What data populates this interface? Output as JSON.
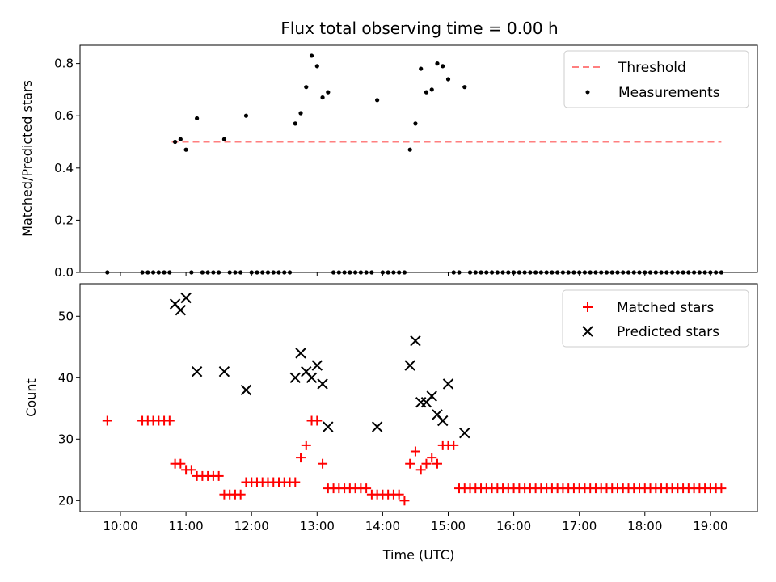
{
  "figure": {
    "title": "Flux total observing time = 0.00 h",
    "xlabel": "Time (UTC)"
  },
  "chart_data": [
    {
      "type": "scatter",
      "ylabel": "Matched/Predicted stars",
      "ylim": [
        0,
        0.87
      ],
      "xlim": [
        "09:23",
        "19:43"
      ],
      "yticks": [
        0.0,
        0.2,
        0.4,
        0.6,
        0.8
      ],
      "ytick_labels": [
        "0.0",
        "0.2",
        "0.4",
        "0.6",
        "0.8"
      ],
      "legend_position": "top-right",
      "threshold": {
        "name": "Threshold",
        "value": 0.5,
        "x_range": [
          "10:47",
          "19:10"
        ],
        "color": "#ff7f7f",
        "style": "dashed"
      },
      "series": [
        {
          "name": "Measurements",
          "color": "#000000",
          "marker": "dot",
          "points": [
            [
              "09:48",
              0.0
            ],
            [
              "10:20",
              0.0
            ],
            [
              "10:25",
              0.0
            ],
            [
              "10:30",
              0.0
            ],
            [
              "10:35",
              0.0
            ],
            [
              "10:40",
              0.0
            ],
            [
              "10:45",
              0.0
            ],
            [
              "10:50",
              0.5
            ],
            [
              "10:55",
              0.51
            ],
            [
              "11:00",
              0.47
            ],
            [
              "11:05",
              0.0
            ],
            [
              "11:10",
              0.59
            ],
            [
              "11:15",
              0.0
            ],
            [
              "11:20",
              0.0
            ],
            [
              "11:25",
              0.0
            ],
            [
              "11:30",
              0.0
            ],
            [
              "11:35",
              0.51
            ],
            [
              "11:40",
              0.0
            ],
            [
              "11:45",
              0.0
            ],
            [
              "11:50",
              0.0
            ],
            [
              "11:55",
              0.6
            ],
            [
              "12:00",
              0.0
            ],
            [
              "12:05",
              0.0
            ],
            [
              "12:10",
              0.0
            ],
            [
              "12:15",
              0.0
            ],
            [
              "12:20",
              0.0
            ],
            [
              "12:25",
              0.0
            ],
            [
              "12:30",
              0.0
            ],
            [
              "12:35",
              0.0
            ],
            [
              "12:40",
              0.57
            ],
            [
              "12:45",
              0.61
            ],
            [
              "12:50",
              0.71
            ],
            [
              "12:55",
              0.83
            ],
            [
              "13:00",
              0.79
            ],
            [
              "13:05",
              0.67
            ],
            [
              "13:10",
              0.69
            ],
            [
              "13:15",
              0.0
            ],
            [
              "13:20",
              0.0
            ],
            [
              "13:25",
              0.0
            ],
            [
              "13:30",
              0.0
            ],
            [
              "13:35",
              0.0
            ],
            [
              "13:40",
              0.0
            ],
            [
              "13:45",
              0.0
            ],
            [
              "13:50",
              0.0
            ],
            [
              "13:55",
              0.66
            ],
            [
              "14:00",
              0.0
            ],
            [
              "14:05",
              0.0
            ],
            [
              "14:10",
              0.0
            ],
            [
              "14:15",
              0.0
            ],
            [
              "14:20",
              0.0
            ],
            [
              "14:25",
              0.47
            ],
            [
              "14:30",
              0.57
            ],
            [
              "14:35",
              0.78
            ],
            [
              "14:40",
              0.69
            ],
            [
              "14:45",
              0.7
            ],
            [
              "14:50",
              0.8
            ],
            [
              "14:55",
              0.79
            ],
            [
              "15:00",
              0.74
            ],
            [
              "15:05",
              0.0
            ],
            [
              "15:10",
              0.0
            ],
            [
              "15:15",
              0.71
            ],
            [
              "15:20",
              0.0
            ],
            [
              "15:25",
              0.0
            ],
            [
              "15:30",
              0.0
            ],
            [
              "15:35",
              0.0
            ],
            [
              "15:40",
              0.0
            ],
            [
              "15:45",
              0.0
            ],
            [
              "15:50",
              0.0
            ],
            [
              "15:55",
              0.0
            ],
            [
              "16:00",
              0.0
            ],
            [
              "16:05",
              0.0
            ],
            [
              "16:10",
              0.0
            ],
            [
              "16:15",
              0.0
            ],
            [
              "16:20",
              0.0
            ],
            [
              "16:25",
              0.0
            ],
            [
              "16:30",
              0.0
            ],
            [
              "16:35",
              0.0
            ],
            [
              "16:40",
              0.0
            ],
            [
              "16:45",
              0.0
            ],
            [
              "16:50",
              0.0
            ],
            [
              "16:55",
              0.0
            ],
            [
              "17:00",
              0.0
            ],
            [
              "17:05",
              0.0
            ],
            [
              "17:10",
              0.0
            ],
            [
              "17:15",
              0.0
            ],
            [
              "17:20",
              0.0
            ],
            [
              "17:25",
              0.0
            ],
            [
              "17:30",
              0.0
            ],
            [
              "17:35",
              0.0
            ],
            [
              "17:40",
              0.0
            ],
            [
              "17:45",
              0.0
            ],
            [
              "17:50",
              0.0
            ],
            [
              "17:55",
              0.0
            ],
            [
              "18:00",
              0.0
            ],
            [
              "18:05",
              0.0
            ],
            [
              "18:10",
              0.0
            ],
            [
              "18:15",
              0.0
            ],
            [
              "18:20",
              0.0
            ],
            [
              "18:25",
              0.0
            ],
            [
              "18:30",
              0.0
            ],
            [
              "18:35",
              0.0
            ],
            [
              "18:40",
              0.0
            ],
            [
              "18:45",
              0.0
            ],
            [
              "18:50",
              0.0
            ],
            [
              "18:55",
              0.0
            ],
            [
              "19:00",
              0.0
            ],
            [
              "19:05",
              0.0
            ],
            [
              "19:10",
              0.0
            ]
          ]
        }
      ]
    },
    {
      "type": "scatter",
      "ylabel": "Count",
      "ylim": [
        18.2,
        55.3
      ],
      "xlim": [
        "09:23",
        "19:43"
      ],
      "yticks": [
        20,
        30,
        40,
        50
      ],
      "ytick_labels": [
        "20",
        "30",
        "40",
        "50"
      ],
      "xticks": [
        "10:00",
        "11:00",
        "12:00",
        "13:00",
        "14:00",
        "15:00",
        "16:00",
        "17:00",
        "18:00",
        "19:00"
      ],
      "legend_position": "top-right",
      "series": [
        {
          "name": "Matched stars",
          "color": "#ff0000",
          "marker": "plus",
          "points": [
            [
              "09:48",
              33
            ],
            [
              "10:20",
              33
            ],
            [
              "10:25",
              33
            ],
            [
              "10:30",
              33
            ],
            [
              "10:35",
              33
            ],
            [
              "10:40",
              33
            ],
            [
              "10:45",
              33
            ],
            [
              "10:50",
              26
            ],
            [
              "10:55",
              26
            ],
            [
              "11:00",
              25
            ],
            [
              "11:05",
              25
            ],
            [
              "11:10",
              24
            ],
            [
              "11:15",
              24
            ],
            [
              "11:20",
              24
            ],
            [
              "11:25",
              24
            ],
            [
              "11:30",
              24
            ],
            [
              "11:35",
              21
            ],
            [
              "11:40",
              21
            ],
            [
              "11:45",
              21
            ],
            [
              "11:50",
              21
            ],
            [
              "11:55",
              23
            ],
            [
              "12:00",
              23
            ],
            [
              "12:05",
              23
            ],
            [
              "12:10",
              23
            ],
            [
              "12:15",
              23
            ],
            [
              "12:20",
              23
            ],
            [
              "12:25",
              23
            ],
            [
              "12:30",
              23
            ],
            [
              "12:35",
              23
            ],
            [
              "12:40",
              23
            ],
            [
              "12:45",
              27
            ],
            [
              "12:50",
              29
            ],
            [
              "12:55",
              33
            ],
            [
              "13:00",
              33
            ],
            [
              "13:05",
              26
            ],
            [
              "13:10",
              22
            ],
            [
              "13:15",
              22
            ],
            [
              "13:20",
              22
            ],
            [
              "13:25",
              22
            ],
            [
              "13:30",
              22
            ],
            [
              "13:35",
              22
            ],
            [
              "13:40",
              22
            ],
            [
              "13:45",
              22
            ],
            [
              "13:50",
              21
            ],
            [
              "13:55",
              21
            ],
            [
              "14:00",
              21
            ],
            [
              "14:05",
              21
            ],
            [
              "14:10",
              21
            ],
            [
              "14:15",
              21
            ],
            [
              "14:20",
              20
            ],
            [
              "14:25",
              26
            ],
            [
              "14:30",
              28
            ],
            [
              "14:35",
              25
            ],
            [
              "14:40",
              26
            ],
            [
              "14:45",
              27
            ],
            [
              "14:50",
              26
            ],
            [
              "14:55",
              29
            ],
            [
              "15:00",
              29
            ],
            [
              "15:05",
              29
            ],
            [
              "15:10",
              22
            ],
            [
              "15:15",
              22
            ],
            [
              "15:20",
              22
            ],
            [
              "15:25",
              22
            ],
            [
              "15:30",
              22
            ],
            [
              "15:35",
              22
            ],
            [
              "15:40",
              22
            ],
            [
              "15:45",
              22
            ],
            [
              "15:50",
              22
            ],
            [
              "15:55",
              22
            ],
            [
              "16:00",
              22
            ],
            [
              "16:05",
              22
            ],
            [
              "16:10",
              22
            ],
            [
              "16:15",
              22
            ],
            [
              "16:20",
              22
            ],
            [
              "16:25",
              22
            ],
            [
              "16:30",
              22
            ],
            [
              "16:35",
              22
            ],
            [
              "16:40",
              22
            ],
            [
              "16:45",
              22
            ],
            [
              "16:50",
              22
            ],
            [
              "16:55",
              22
            ],
            [
              "17:00",
              22
            ],
            [
              "17:05",
              22
            ],
            [
              "17:10",
              22
            ],
            [
              "17:15",
              22
            ],
            [
              "17:20",
              22
            ],
            [
              "17:25",
              22
            ],
            [
              "17:30",
              22
            ],
            [
              "17:35",
              22
            ],
            [
              "17:40",
              22
            ],
            [
              "17:45",
              22
            ],
            [
              "17:50",
              22
            ],
            [
              "17:55",
              22
            ],
            [
              "18:00",
              22
            ],
            [
              "18:05",
              22
            ],
            [
              "18:10",
              22
            ],
            [
              "18:15",
              22
            ],
            [
              "18:20",
              22
            ],
            [
              "18:25",
              22
            ],
            [
              "18:30",
              22
            ],
            [
              "18:35",
              22
            ],
            [
              "18:40",
              22
            ],
            [
              "18:45",
              22
            ],
            [
              "18:50",
              22
            ],
            [
              "18:55",
              22
            ],
            [
              "19:00",
              22
            ],
            [
              "19:05",
              22
            ],
            [
              "19:10",
              22
            ]
          ]
        },
        {
          "name": "Predicted stars",
          "color": "#000000",
          "marker": "x",
          "points": [
            [
              "10:50",
              52
            ],
            [
              "10:55",
              51
            ],
            [
              "11:00",
              53
            ],
            [
              "11:10",
              41
            ],
            [
              "11:35",
              41
            ],
            [
              "11:55",
              38
            ],
            [
              "12:40",
              40
            ],
            [
              "12:45",
              44
            ],
            [
              "12:50",
              41
            ],
            [
              "12:55",
              40
            ],
            [
              "13:00",
              42
            ],
            [
              "13:05",
              39
            ],
            [
              "13:10",
              32
            ],
            [
              "13:55",
              32
            ],
            [
              "14:25",
              42
            ],
            [
              "14:30",
              46
            ],
            [
              "14:35",
              36
            ],
            [
              "14:40",
              36
            ],
            [
              "14:45",
              37
            ],
            [
              "14:50",
              34
            ],
            [
              "14:55",
              33
            ],
            [
              "15:00",
              39
            ],
            [
              "15:15",
              31
            ]
          ]
        }
      ]
    }
  ]
}
